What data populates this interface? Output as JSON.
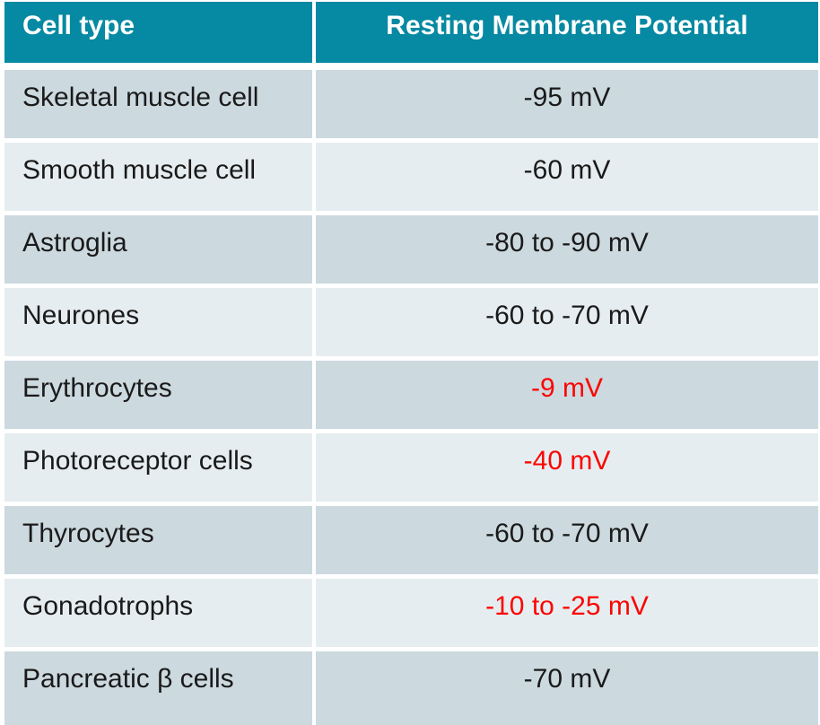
{
  "chart_data": {
    "type": "table",
    "title": "",
    "columns": [
      "Cell type",
      "Resting Membrane Potential"
    ],
    "rows": [
      [
        "Skeletal muscle cell",
        "-95 mV"
      ],
      [
        "Smooth muscle cell",
        "-60 mV"
      ],
      [
        "Astroglia",
        "-80 to -90 mV"
      ],
      [
        "Neurones",
        "-60 to -70 mV"
      ],
      [
        "Erythrocytes",
        "-9 mV"
      ],
      [
        "Photoreceptor cells",
        "-40 mV"
      ],
      [
        "Thyrocytes",
        "-60 to -70 mV"
      ],
      [
        "Gonadotrophs",
        "-10 to -25 mV"
      ],
      [
        "Pancreatic β cells",
        "-70 mV"
      ]
    ],
    "highlighted_value_rows": [
      "Erythrocytes",
      "Photoreceptor cells",
      "Gonadotrophs"
    ]
  },
  "table": {
    "columns": [
      {
        "label": "Cell type"
      },
      {
        "label": "Resting Membrane Potential"
      }
    ],
    "rows": [
      {
        "cell_type": "Skeletal muscle cell",
        "potential": "-95 mV",
        "highlight": false
      },
      {
        "cell_type": "Smooth muscle cell",
        "potential": "-60 mV",
        "highlight": false
      },
      {
        "cell_type": "Astroglia",
        "potential": "-80 to -90 mV",
        "highlight": false
      },
      {
        "cell_type": "Neurones",
        "potential": "-60 to -70 mV",
        "highlight": false
      },
      {
        "cell_type": "Erythrocytes",
        "potential": "-9 mV",
        "highlight": true
      },
      {
        "cell_type": "Photoreceptor cells",
        "potential": "-40 mV",
        "highlight": true
      },
      {
        "cell_type": "Thyrocytes",
        "potential": "-60 to -70 mV",
        "highlight": false
      },
      {
        "cell_type": "Gonadotrophs",
        "potential": "-10 to -25 mV",
        "highlight": true
      },
      {
        "cell_type": "Pancreatic β cells",
        "potential": "-70 mV",
        "highlight": false
      }
    ]
  },
  "colors": {
    "header_bg": "#0689A2",
    "header_text": "#FFFFFF",
    "row_dark": "#CCD9DF",
    "row_light": "#E6EDF0",
    "body_text": "#1A1A1A",
    "accent_red": "#FA0500"
  }
}
